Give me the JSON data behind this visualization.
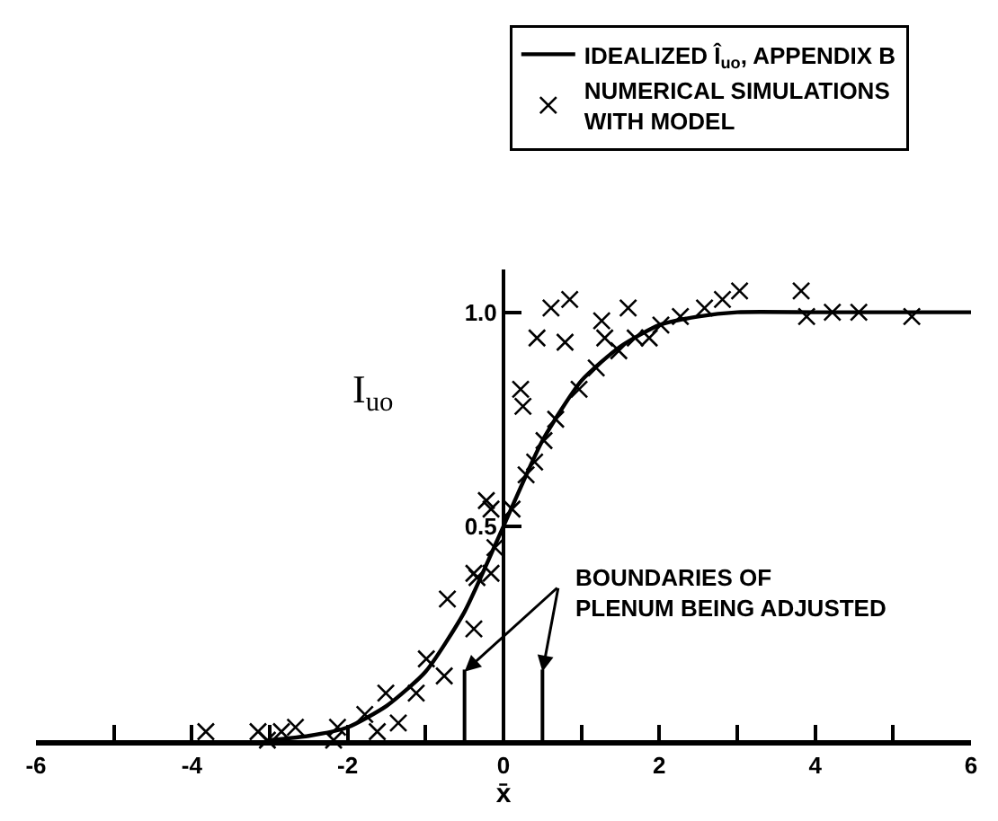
{
  "chart_data": {
    "type": "line",
    "xlabel": "x̄",
    "ylabel": "I$_{uo}$",
    "xlim": [
      -6,
      6
    ],
    "ylim": [
      0,
      1.1
    ],
    "xticks": [
      -6,
      {
        "value": -5,
        "label": null
      },
      -4,
      {
        "value": -3,
        "label": null
      },
      -2,
      {
        "value": -1,
        "label": null
      },
      0,
      {
        "value": 1,
        "label": null
      },
      2,
      {
        "value": 3,
        "label": null
      },
      4,
      {
        "value": 5,
        "label": null
      },
      6
    ],
    "yticks": [
      0.5,
      {
        "value": 1,
        "label": "1.0"
      }
    ],
    "grid": false,
    "legend": "top right",
    "series": [
      {
        "name": "IDEALIZED Î$_{uo}$, APPENDIX B",
        "type": "line",
        "color": "#000000",
        "line_style": "solid",
        "marker": "none",
        "x": [
          -3,
          -2.5,
          -2,
          -1.5,
          -1,
          -0.5,
          0,
          0.5,
          1,
          1.5,
          2,
          2.5,
          3,
          4,
          5,
          6
        ],
        "values": [
          0,
          0.01,
          0.03,
          0.08,
          0.16,
          0.3,
          0.5,
          0.7,
          0.84,
          0.92,
          0.97,
          0.99,
          1,
          1,
          1,
          1
        ]
      },
      {
        "name": "NUMERICAL SIMULATIONS\nWITH MODEL",
        "type": "scatter",
        "color": "#000000",
        "marker": "cross",
        "x": [
          0.43,
          0.61,
          0.85,
          0.79,
          0.22,
          0.25,
          1.6,
          1.26,
          1.3,
          3.82,
          3.89,
          4.22,
          4.56,
          5.24,
          3.03,
          2.81,
          2.58,
          2.27,
          2.02,
          1.87,
          1.69,
          1.48,
          1.19,
          0.97,
          0.67,
          0.52,
          0.4,
          0.29,
          0.11,
          -0.22,
          -0.16,
          -0.11,
          -0.38,
          -0.16,
          -0.34,
          -0.72,
          -0.38,
          -0.99,
          -0.76,
          -1.12,
          -1.51,
          -1.35,
          -1.62,
          -1.78,
          -2.13,
          -2.18,
          -2.67,
          -2.85,
          -3.03,
          -3.15,
          -3.82
        ],
        "values": [
          0.94,
          1.01,
          1.03,
          0.93,
          0.82,
          0.78,
          1.01,
          0.98,
          0.94,
          1.05,
          0.99,
          1,
          1,
          0.99,
          1.05,
          1.03,
          1.01,
          0.99,
          0.97,
          0.94,
          0.94,
          0.91,
          0.87,
          0.82,
          0.75,
          0.7,
          0.65,
          0.62,
          0.54,
          0.56,
          0.54,
          0.45,
          0.39,
          0.39,
          0.38,
          0.33,
          0.26,
          0.19,
          0.15,
          0.11,
          0.11,
          0.04,
          0.02,
          0.06,
          0.03,
          0,
          0.03,
          0.02,
          0,
          0.02,
          0.02
        ]
      }
    ],
    "ref_lines": [
      {
        "axis": "x",
        "value": -0.5
      },
      {
        "axis": "x",
        "value": 0.5
      }
    ],
    "annotations": [
      {
        "text": "BOUNDARIES OF\nPLENUM BEING ADJUSTED",
        "x": -0.5,
        "y": 0.16
      }
    ]
  }
}
